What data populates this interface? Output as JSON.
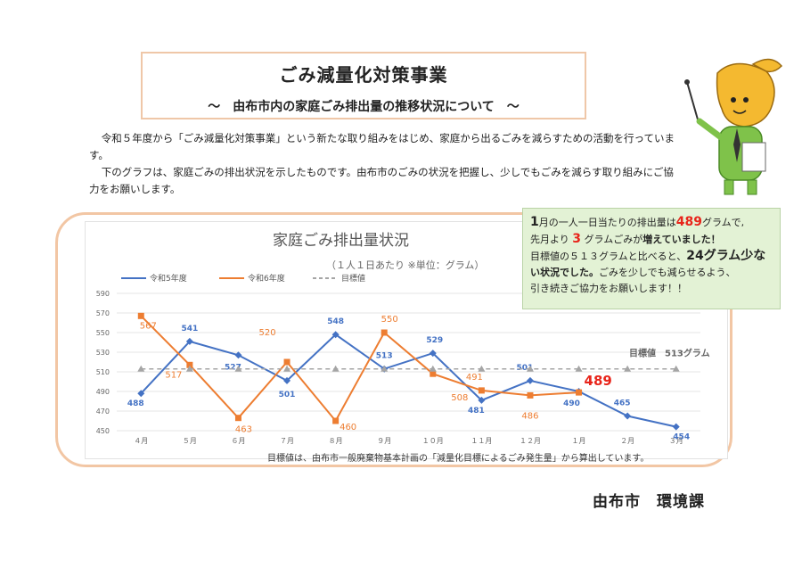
{
  "header": {
    "title": "ごみ減量化対策事業",
    "subtitle": "～　由布市内の家庭ごみ排出量の推移状況について　～"
  },
  "intro": {
    "p1": "令和５年度から「ごみ減量化対策事業」という新たな取り組みをはじめ、家庭から出るごみを減らすための活動を行っています。",
    "p2": "下のグラフは、家庭ごみの排出状況を示したものです。由布市のごみの状況を把握し、少しでもごみを減らす取り組みにご協力をお願いします。"
  },
  "callout": {
    "l1a": "1",
    "l1b": "月の一人一日当たりの排出量は",
    "l1c": "489",
    "l1d": "グラムで,",
    "l2a": "先月より",
    "l2b": "3",
    "l2c": "グラムごみが",
    "l2d": "増えていました！",
    "l3a": "目標値の５１３グラムと比べると、",
    "l3b": "24グラム少な",
    "l4a": "い状況でした。",
    "l4b": "ごみを少しでも減らせるよう、",
    "l5": "引き続きご協力をお願いします！！"
  },
  "footnote": "目標値は、由布市一般廃棄物基本計画の「減量化目標によるごみ発生量」から算出しています。",
  "department": "由布市　環境課",
  "chart_data": {
    "type": "line",
    "title": "家庭ごみ排出量状況",
    "subtitle": "（１人１日あたり ※単位：グラム）",
    "categories": [
      "４月",
      "５月",
      "６月",
      "７月",
      "８月",
      "９月",
      "１０月",
      "１１月",
      "１２月",
      "１月",
      "２月",
      "３月"
    ],
    "ylim": [
      450,
      590
    ],
    "yticks": [
      450,
      470,
      490,
      510,
      530,
      550,
      570,
      590
    ],
    "series": [
      {
        "name": "令和5年度",
        "color": "#4472c4",
        "values": [
          488,
          541,
          527,
          501,
          548,
          513,
          529,
          481,
          501,
          490,
          465,
          454
        ]
      },
      {
        "name": "令和6年度",
        "color": "#ed7d31",
        "values": [
          567,
          517,
          463,
          520,
          460,
          550,
          508,
          491,
          486,
          489,
          null,
          null
        ]
      },
      {
        "name": "目標値",
        "color": "#a5a5a5",
        "values": [
          513,
          513,
          513,
          513,
          513,
          513,
          513,
          513,
          513,
          513,
          513,
          513
        ]
      }
    ],
    "target_label": "目標値　513グラム",
    "highlight": {
      "label": "489",
      "color": "#e8241a"
    }
  }
}
